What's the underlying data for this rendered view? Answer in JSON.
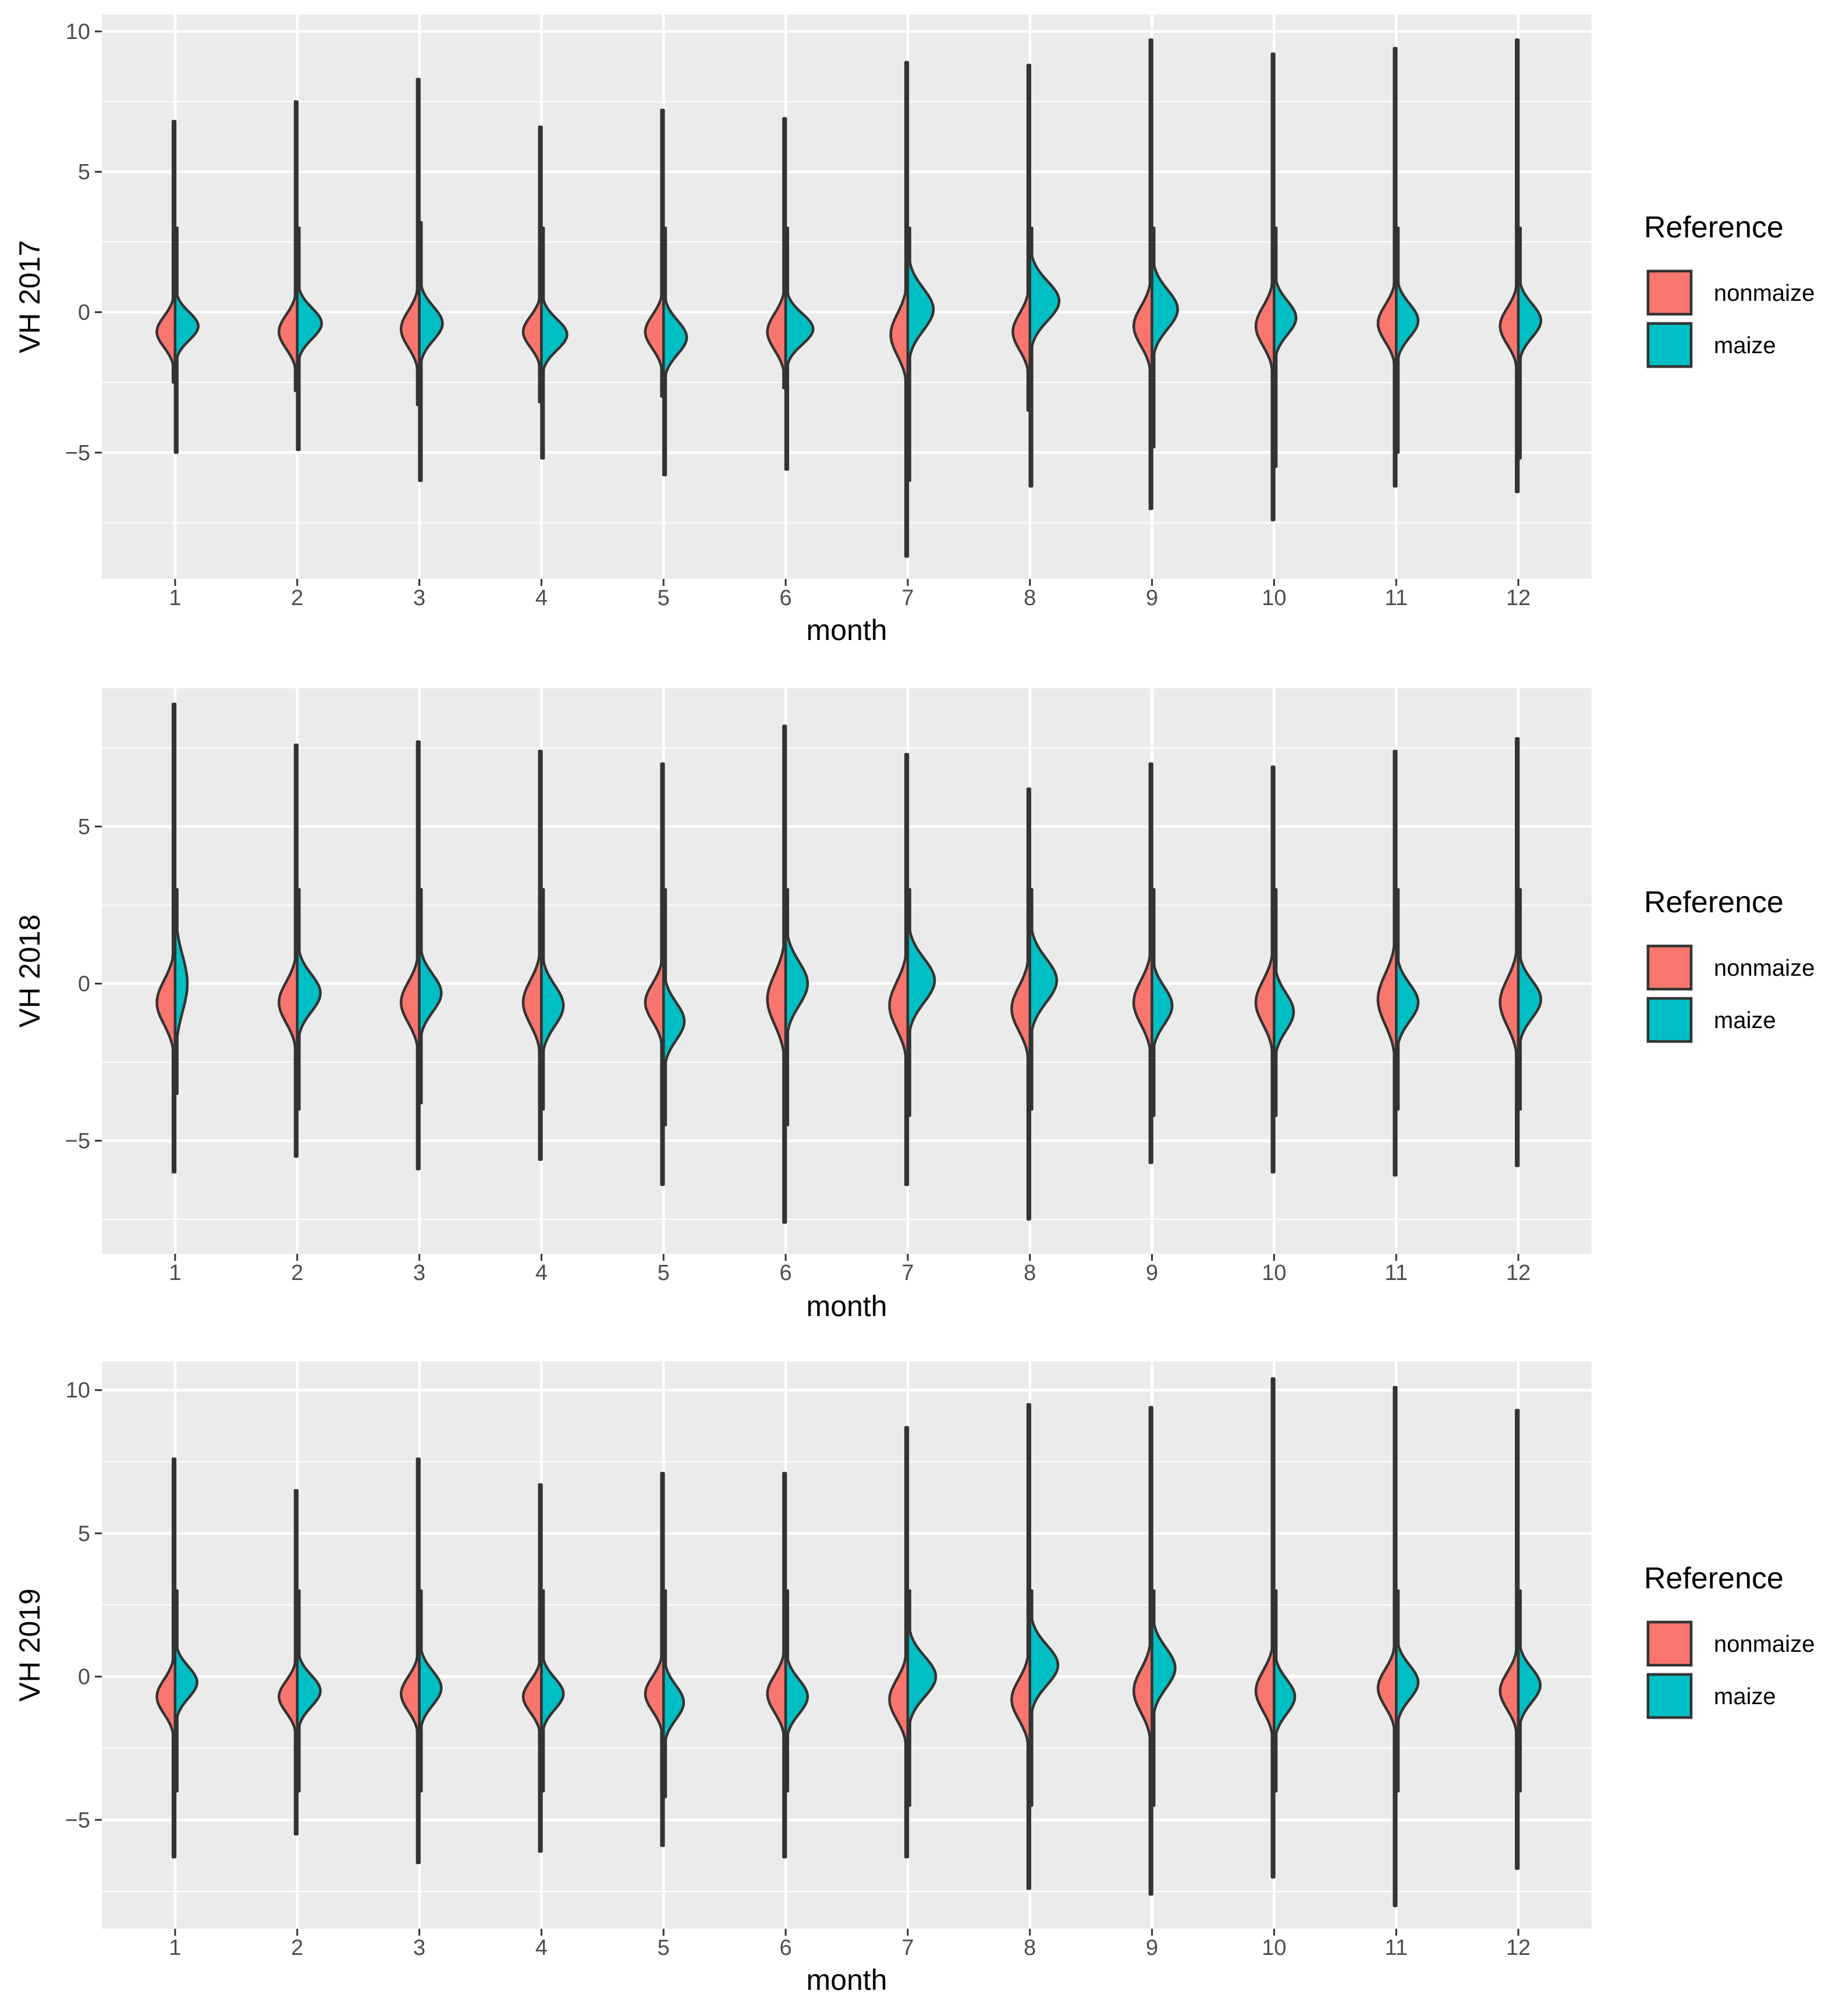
{
  "chart_data": [
    {
      "type": "split-violin",
      "ylabel": "VH 2017",
      "xlabel": "month",
      "ylim": [
        -9.5,
        10.6
      ],
      "yticks": [
        -5,
        0,
        5,
        10
      ],
      "ytick_labels": [
        "−5",
        "0",
        "5",
        "10"
      ],
      "categories": [
        "1",
        "2",
        "3",
        "4",
        "5",
        "6",
        "7",
        "8",
        "9",
        "10",
        "11",
        "12"
      ],
      "legend": {
        "title": "Reference",
        "position": "right",
        "entries": [
          {
            "label": "nonmaize",
            "color": "#F8766D"
          },
          {
            "label": "maize",
            "color": "#00BFC4"
          }
        ]
      },
      "series": [
        {
          "name": "nonmaize",
          "color": "#F8766D",
          "peak": [
            -0.7,
            -0.7,
            -0.6,
            -0.7,
            -0.7,
            -0.7,
            -0.8,
            -0.7,
            -0.5,
            -0.5,
            -0.4,
            -0.5
          ],
          "sd": [
            0.55,
            0.6,
            0.65,
            0.55,
            0.6,
            0.65,
            0.75,
            0.65,
            0.7,
            0.7,
            0.65,
            0.65
          ],
          "width": [
            0.3,
            0.3,
            0.3,
            0.3,
            0.3,
            0.3,
            0.28,
            0.28,
            0.3,
            0.3,
            0.3,
            0.3
          ],
          "min": [
            -2.5,
            -2.8,
            -3.3,
            -3.2,
            -3.0,
            -2.7,
            -8.7,
            -3.5,
            -7.0,
            -7.4,
            -6.2,
            -6.4
          ],
          "max": [
            6.8,
            7.5,
            8.3,
            6.6,
            7.2,
            6.9,
            8.9,
            8.8,
            9.7,
            9.2,
            9.4,
            9.7
          ]
        },
        {
          "name": "maize",
          "color": "#00BFC4",
          "peak": [
            -0.5,
            -0.4,
            -0.4,
            -0.8,
            -0.9,
            -0.6,
            0.1,
            0.4,
            0.1,
            -0.2,
            -0.3,
            -0.3
          ],
          "sd": [
            0.5,
            0.55,
            0.6,
            0.55,
            0.6,
            0.55,
            0.75,
            0.7,
            0.7,
            0.6,
            0.6,
            0.6
          ],
          "width": [
            0.38,
            0.4,
            0.38,
            0.42,
            0.38,
            0.45,
            0.42,
            0.48,
            0.42,
            0.36,
            0.36,
            0.37
          ],
          "min": [
            -5.0,
            -4.9,
            -6.0,
            -5.2,
            -5.8,
            -5.6,
            -6.0,
            -6.2,
            -4.8,
            -5.5,
            -5.0,
            -5.2
          ],
          "max": [
            3.0,
            3.0,
            3.2,
            3.0,
            3.0,
            3.0,
            3.0,
            3.0,
            3.0,
            3.0,
            3.0,
            3.0
          ]
        }
      ]
    },
    {
      "type": "split-violin",
      "ylabel": "VH 2018",
      "xlabel": "month",
      "ylim": [
        -8.6,
        9.4
      ],
      "yticks": [
        -5,
        0,
        5
      ],
      "ytick_labels": [
        "−5",
        "0",
        "5"
      ],
      "categories": [
        "1",
        "2",
        "3",
        "4",
        "5",
        "6",
        "7",
        "8",
        "9",
        "10",
        "11",
        "12"
      ],
      "legend": {
        "title": "Reference",
        "position": "right",
        "entries": [
          {
            "label": "nonmaize",
            "color": "#F8766D"
          },
          {
            "label": "maize",
            "color": "#00BFC4"
          }
        ]
      },
      "series": [
        {
          "name": "nonmaize",
          "color": "#F8766D",
          "peak": [
            -0.6,
            -0.6,
            -0.6,
            -0.6,
            -0.6,
            -0.5,
            -0.7,
            -0.8,
            -0.6,
            -0.6,
            -0.5,
            -0.6
          ],
          "sd": [
            0.7,
            0.65,
            0.65,
            0.7,
            0.6,
            0.8,
            0.75,
            0.7,
            0.7,
            0.7,
            0.8,
            0.75
          ],
          "width": [
            0.3,
            0.3,
            0.3,
            0.3,
            0.3,
            0.3,
            0.3,
            0.3,
            0.3,
            0.3,
            0.3,
            0.3
          ],
          "min": [
            -6.0,
            -5.5,
            -5.9,
            -5.6,
            -6.4,
            -7.6,
            -6.4,
            -7.5,
            -5.7,
            -6.0,
            -6.1,
            -5.8
          ],
          "max": [
            8.9,
            7.6,
            7.7,
            7.4,
            7.0,
            8.2,
            7.3,
            6.2,
            7.0,
            6.9,
            7.4,
            7.8
          ]
        },
        {
          "name": "maize",
          "color": "#00BFC4",
          "peak": [
            0.0,
            -0.3,
            -0.3,
            -0.7,
            -1.2,
            0.0,
            0.1,
            0.1,
            -0.7,
            -0.9,
            -0.6,
            -0.5
          ],
          "sd": [
            0.9,
            0.6,
            0.6,
            0.65,
            0.6,
            0.7,
            0.7,
            0.7,
            0.6,
            0.6,
            0.6,
            0.6
          ],
          "width": [
            0.2,
            0.38,
            0.36,
            0.36,
            0.34,
            0.36,
            0.44,
            0.44,
            0.33,
            0.32,
            0.36,
            0.37
          ],
          "min": [
            -3.5,
            -4.0,
            -3.8,
            -4.0,
            -4.5,
            -4.5,
            -4.2,
            -4.0,
            -4.2,
            -4.2,
            -4.0,
            -4.0
          ],
          "max": [
            3.0,
            3.0,
            3.0,
            3.0,
            3.0,
            3.0,
            3.0,
            3.0,
            3.0,
            3.0,
            3.0,
            3.0
          ]
        }
      ]
    },
    {
      "type": "split-violin",
      "ylabel": "VH 2019",
      "xlabel": "month",
      "ylim": [
        -8.8,
        11.0
      ],
      "yticks": [
        -5,
        0,
        5,
        10
      ],
      "ytick_labels": [
        "−5",
        "0",
        "5",
        "10"
      ],
      "categories": [
        "1",
        "2",
        "3",
        "4",
        "5",
        "6",
        "7",
        "8",
        "9",
        "10",
        "11",
        "12"
      ],
      "legend": {
        "title": "Reference",
        "position": "right",
        "entries": [
          {
            "label": "nonmaize",
            "color": "#F8766D"
          },
          {
            "label": "maize",
            "color": "#00BFC4"
          }
        ]
      },
      "series": [
        {
          "name": "nonmaize",
          "color": "#F8766D",
          "peak": [
            -0.7,
            -0.7,
            -0.6,
            -0.7,
            -0.6,
            -0.6,
            -0.8,
            -0.8,
            -0.5,
            -0.5,
            -0.4,
            -0.5
          ],
          "sd": [
            0.6,
            0.55,
            0.6,
            0.55,
            0.6,
            0.65,
            0.7,
            0.7,
            0.75,
            0.7,
            0.65,
            0.65
          ],
          "width": [
            0.3,
            0.3,
            0.3,
            0.3,
            0.3,
            0.3,
            0.3,
            0.3,
            0.3,
            0.3,
            0.3,
            0.3
          ],
          "min": [
            -6.3,
            -5.5,
            -6.5,
            -6.1,
            -5.9,
            -6.3,
            -6.3,
            -7.4,
            -7.6,
            -7.0,
            -8.0,
            -6.7
          ],
          "max": [
            7.6,
            6.5,
            7.6,
            6.7,
            7.1,
            7.1,
            8.7,
            9.5,
            9.4,
            10.4,
            10.1,
            9.3
          ]
        },
        {
          "name": "maize",
          "color": "#00BFC4",
          "peak": [
            -0.2,
            -0.5,
            -0.4,
            -0.6,
            -0.9,
            -0.7,
            0.0,
            0.4,
            0.3,
            -0.7,
            -0.2,
            -0.3
          ],
          "sd": [
            0.55,
            0.55,
            0.6,
            0.55,
            0.6,
            0.6,
            0.7,
            0.7,
            0.7,
            0.6,
            0.6,
            0.6
          ],
          "width": [
            0.36,
            0.38,
            0.36,
            0.36,
            0.33,
            0.36,
            0.46,
            0.46,
            0.38,
            0.34,
            0.36,
            0.36
          ],
          "min": [
            -4.0,
            -4.0,
            -4.0,
            -4.0,
            -4.2,
            -4.0,
            -4.5,
            -4.5,
            -4.5,
            -4.0,
            -4.0,
            -4.0
          ],
          "max": [
            3.0,
            3.0,
            3.0,
            3.0,
            3.0,
            3.0,
            3.0,
            3.0,
            3.0,
            3.0,
            3.0,
            3.0
          ]
        }
      ]
    }
  ]
}
